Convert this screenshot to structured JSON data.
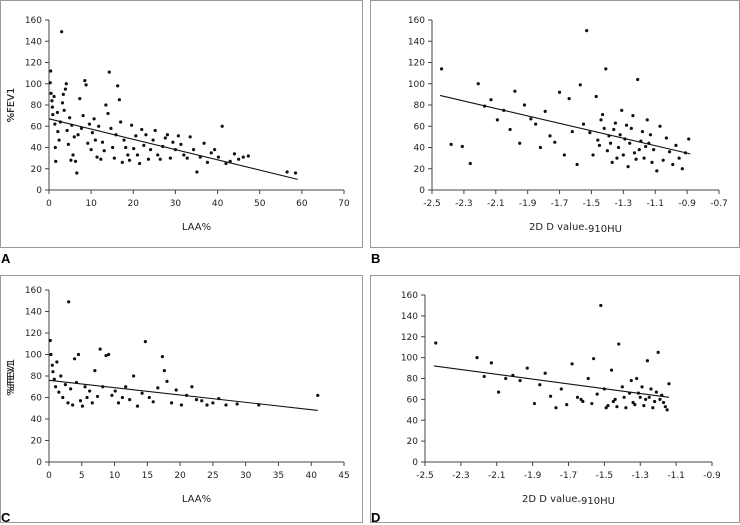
{
  "chart_data": [
    {
      "panel": "A",
      "type": "scatter",
      "xlabel": "LAA%",
      "ylabel": "%FEV1",
      "xlim": [
        0,
        70
      ],
      "ylim": [
        0,
        160
      ],
      "xticks": [
        0,
        10,
        20,
        30,
        40,
        50,
        60,
        70
      ],
      "yticks": [
        0,
        20,
        40,
        60,
        80,
        100,
        120,
        140,
        160
      ],
      "trendline": {
        "x": [
          0,
          59
        ],
        "y": [
          67,
          10
        ]
      },
      "points": [
        [
          0.4,
          112
        ],
        [
          0.3,
          101
        ],
        [
          0.5,
          91
        ],
        [
          0.7,
          84
        ],
        [
          0.8,
          78
        ],
        [
          0.9,
          71
        ],
        [
          1.2,
          88
        ],
        [
          1.4,
          62
        ],
        [
          1.5,
          40
        ],
        [
          1.6,
          27
        ],
        [
          2.0,
          73
        ],
        [
          2.1,
          55
        ],
        [
          2.4,
          47
        ],
        [
          2.7,
          64
        ],
        [
          3.0,
          149
        ],
        [
          3.2,
          82
        ],
        [
          3.4,
          90
        ],
        [
          3.6,
          75
        ],
        [
          3.9,
          95
        ],
        [
          4.1,
          100
        ],
        [
          4.3,
          56
        ],
        [
          4.6,
          43
        ],
        [
          4.9,
          68
        ],
        [
          5.2,
          28
        ],
        [
          5.4,
          61
        ],
        [
          5.7,
          33
        ],
        [
          6.0,
          50
        ],
        [
          6.3,
          27
        ],
        [
          6.6,
          16
        ],
        [
          6.9,
          52
        ],
        [
          7.3,
          86
        ],
        [
          7.7,
          58
        ],
        [
          8.1,
          70
        ],
        [
          8.5,
          103
        ],
        [
          8.8,
          99
        ],
        [
          9.2,
          44
        ],
        [
          9.6,
          62
        ],
        [
          10.0,
          38
        ],
        [
          10.3,
          54
        ],
        [
          10.7,
          67
        ],
        [
          11.0,
          47
        ],
        [
          11.4,
          31
        ],
        [
          11.8,
          60
        ],
        [
          12.3,
          29
        ],
        [
          12.7,
          45
        ],
        [
          13.1,
          37
        ],
        [
          13.5,
          80
        ],
        [
          14.0,
          72
        ],
        [
          14.3,
          111
        ],
        [
          14.7,
          58
        ],
        [
          15.1,
          40
        ],
        [
          15.5,
          30
        ],
        [
          15.9,
          52
        ],
        [
          16.3,
          98
        ],
        [
          16.7,
          85
        ],
        [
          17.0,
          64
        ],
        [
          17.4,
          26
        ],
        [
          17.8,
          47
        ],
        [
          18.2,
          40
        ],
        [
          18.7,
          33
        ],
        [
          19.1,
          28
        ],
        [
          19.6,
          61
        ],
        [
          20.1,
          39
        ],
        [
          20.6,
          51
        ],
        [
          21.0,
          33
        ],
        [
          21.5,
          25
        ],
        [
          22.0,
          57
        ],
        [
          22.5,
          42
        ],
        [
          23.0,
          52
        ],
        [
          23.6,
          29
        ],
        [
          24.1,
          38
        ],
        [
          24.7,
          47
        ],
        [
          25.2,
          56
        ],
        [
          25.8,
          33
        ],
        [
          26.4,
          29
        ],
        [
          27.0,
          41
        ],
        [
          27.6,
          49
        ],
        [
          28.1,
          52
        ],
        [
          28.8,
          30
        ],
        [
          29.4,
          45
        ],
        [
          30.0,
          38
        ],
        [
          30.7,
          51
        ],
        [
          31.3,
          43
        ],
        [
          32.0,
          33
        ],
        [
          32.8,
          30
        ],
        [
          33.5,
          50
        ],
        [
          34.3,
          38
        ],
        [
          35.1,
          17
        ],
        [
          35.9,
          31
        ],
        [
          36.8,
          44
        ],
        [
          37.6,
          26
        ],
        [
          38.5,
          35
        ],
        [
          39.3,
          38
        ],
        [
          40.2,
          31
        ],
        [
          41.1,
          60
        ],
        [
          42.0,
          25
        ],
        [
          43.0,
          27
        ],
        [
          44.0,
          34
        ],
        [
          45.0,
          29
        ],
        [
          46.1,
          31
        ],
        [
          47.3,
          32
        ],
        [
          56.5,
          17
        ],
        [
          58.5,
          16
        ]
      ]
    },
    {
      "panel": "B",
      "type": "scatter",
      "xlabel": "2D D value",
      "xlabel_sub": "-910HU",
      "ylabel": "%FEV1",
      "xlim": [
        -2.5,
        -0.7
      ],
      "ylim": [
        0,
        160
      ],
      "xticks": [
        -2.5,
        -2.3,
        -2.1,
        -1.9,
        -1.7,
        -1.5,
        -1.3,
        -1.1,
        -0.9,
        -0.7
      ],
      "yticks": [
        0,
        20,
        40,
        60,
        80,
        100,
        120,
        140,
        160
      ],
      "trendline": {
        "x": [
          -2.45,
          -0.88
        ],
        "y": [
          89,
          34
        ]
      },
      "points": [
        [
          -2.44,
          114
        ],
        [
          -2.38,
          43
        ],
        [
          -2.31,
          41
        ],
        [
          -2.26,
          25
        ],
        [
          -2.21,
          100
        ],
        [
          -2.17,
          79
        ],
        [
          -2.13,
          85
        ],
        [
          -2.09,
          66
        ],
        [
          -2.05,
          75
        ],
        [
          -2.01,
          57
        ],
        [
          -1.98,
          93
        ],
        [
          -1.95,
          44
        ],
        [
          -1.92,
          80
        ],
        [
          -1.88,
          67
        ],
        [
          -1.85,
          62
        ],
        [
          -1.82,
          40
        ],
        [
          -1.79,
          74
        ],
        [
          -1.76,
          51
        ],
        [
          -1.73,
          45
        ],
        [
          -1.7,
          92
        ],
        [
          -1.67,
          33
        ],
        [
          -1.64,
          86
        ],
        [
          -1.62,
          55
        ],
        [
          -1.59,
          24
        ],
        [
          -1.57,
          99
        ],
        [
          -1.55,
          62
        ],
        [
          -1.53,
          150
        ],
        [
          -1.51,
          54
        ],
        [
          -1.49,
          33
        ],
        [
          -1.47,
          88
        ],
        [
          -1.45,
          42
        ],
        [
          -1.43,
          71
        ],
        [
          -1.41,
          114
        ],
        [
          -1.39,
          51
        ],
        [
          -1.37,
          26
        ],
        [
          -1.35,
          63
        ],
        [
          -1.33,
          40
        ],
        [
          -1.31,
          75
        ],
        [
          -1.29,
          48
        ],
        [
          -1.27,
          22
        ],
        [
          -1.25,
          58
        ],
        [
          -1.23,
          35
        ],
        [
          -1.21,
          104
        ],
        [
          -1.19,
          46
        ],
        [
          -1.17,
          30
        ],
        [
          -1.15,
          66
        ],
        [
          -1.13,
          52
        ],
        [
          -1.11,
          38
        ],
        [
          -1.09,
          18
        ],
        [
          -1.07,
          60
        ],
        [
          -1.05,
          28
        ],
        [
          -1.03,
          49
        ],
        [
          -1.01,
          36
        ],
        [
          -0.99,
          24
        ],
        [
          -0.97,
          42
        ],
        [
          -0.95,
          30
        ],
        [
          -0.93,
          20
        ],
        [
          -0.91,
          35
        ],
        [
          -0.89,
          48
        ],
        [
          -1.44,
          66
        ],
        [
          -1.36,
          57
        ],
        [
          -1.26,
          44
        ],
        [
          -1.22,
          29
        ],
        [
          -1.32,
          52
        ],
        [
          -1.4,
          37
        ],
        [
          -1.16,
          41
        ],
        [
          -1.28,
          61
        ],
        [
          -1.18,
          55
        ],
        [
          -1.46,
          47
        ],
        [
          -1.34,
          30
        ],
        [
          -1.24,
          70
        ],
        [
          -1.2,
          38
        ],
        [
          -1.14,
          44
        ],
        [
          -1.12,
          26
        ],
        [
          -1.3,
          33
        ],
        [
          -1.42,
          58
        ],
        [
          -1.38,
          44
        ]
      ]
    },
    {
      "panel": "C",
      "type": "scatter",
      "xlabel": "LAA%",
      "ylabel": "%FEV1",
      "xlim": [
        0,
        45
      ],
      "ylim": [
        0,
        160
      ],
      "xticks": [
        0,
        5,
        10,
        15,
        20,
        25,
        30,
        35,
        40,
        45
      ],
      "yticks": [
        0,
        20,
        40,
        60,
        80,
        100,
        120,
        140,
        160
      ],
      "trendline": {
        "x": [
          0,
          41
        ],
        "y": [
          76,
          48
        ]
      },
      "points": [
        [
          0.2,
          113
        ],
        [
          0.3,
          100
        ],
        [
          0.5,
          90
        ],
        [
          0.6,
          84
        ],
        [
          0.8,
          77
        ],
        [
          1.0,
          70
        ],
        [
          1.2,
          93
        ],
        [
          1.5,
          65
        ],
        [
          1.8,
          80
        ],
        [
          2.1,
          60
        ],
        [
          2.5,
          72
        ],
        [
          2.9,
          55
        ],
        [
          3.0,
          149
        ],
        [
          3.3,
          68
        ],
        [
          3.6,
          53
        ],
        [
          3.9,
          96
        ],
        [
          4.2,
          74
        ],
        [
          4.5,
          100
        ],
        [
          4.8,
          57
        ],
        [
          5.1,
          52
        ],
        [
          5.5,
          70
        ],
        [
          5.8,
          60
        ],
        [
          6.2,
          66
        ],
        [
          6.6,
          55
        ],
        [
          7.0,
          85
        ],
        [
          7.4,
          61
        ],
        [
          7.8,
          105
        ],
        [
          8.2,
          70
        ],
        [
          8.7,
          99
        ],
        [
          9.1,
          100
        ],
        [
          9.6,
          62
        ],
        [
          10.1,
          66
        ],
        [
          10.6,
          55
        ],
        [
          11.2,
          60
        ],
        [
          11.7,
          70
        ],
        [
          12.3,
          58
        ],
        [
          12.9,
          80
        ],
        [
          13.5,
          52
        ],
        [
          14.2,
          64
        ],
        [
          14.7,
          112
        ],
        [
          15.3,
          60
        ],
        [
          15.9,
          56
        ],
        [
          16.6,
          69
        ],
        [
          17.3,
          98
        ],
        [
          17.6,
          85
        ],
        [
          18.0,
          75
        ],
        [
          18.7,
          55
        ],
        [
          19.4,
          67
        ],
        [
          20.2,
          53
        ],
        [
          21.0,
          62
        ],
        [
          21.8,
          70
        ],
        [
          22.5,
          58
        ],
        [
          23.3,
          57
        ],
        [
          24.1,
          53
        ],
        [
          25.0,
          55
        ],
        [
          25.9,
          59
        ],
        [
          27.0,
          53
        ],
        [
          28.7,
          54
        ],
        [
          32.0,
          53
        ],
        [
          41.0,
          62
        ]
      ]
    },
    {
      "panel": "D",
      "type": "scatter",
      "xlabel": "2D D value",
      "xlabel_sub": "-910HU",
      "ylabel": "%FEV1",
      "xlim": [
        -2.5,
        -0.9
      ],
      "ylim": [
        0,
        160
      ],
      "xticks": [
        -2.5,
        -2.3,
        -2.1,
        -1.9,
        -1.7,
        -1.5,
        -1.3,
        -1.1,
        -0.9
      ],
      "yticks": [
        0,
        20,
        40,
        60,
        80,
        100,
        120,
        140,
        160
      ],
      "trendline": {
        "x": [
          -2.45,
          -1.14
        ],
        "y": [
          92,
          62
        ]
      },
      "points": [
        [
          -2.44,
          114
        ],
        [
          -2.21,
          100
        ],
        [
          -2.17,
          82
        ],
        [
          -2.13,
          95
        ],
        [
          -2.09,
          67
        ],
        [
          -2.05,
          80
        ],
        [
          -2.01,
          83
        ],
        [
          -1.97,
          78
        ],
        [
          -1.93,
          90
        ],
        [
          -1.89,
          56
        ],
        [
          -1.86,
          74
        ],
        [
          -1.83,
          85
        ],
        [
          -1.8,
          63
        ],
        [
          -1.77,
          52
        ],
        [
          -1.74,
          70
        ],
        [
          -1.71,
          55
        ],
        [
          -1.68,
          94
        ],
        [
          -1.65,
          62
        ],
        [
          -1.62,
          58
        ],
        [
          -1.59,
          80
        ],
        [
          -1.56,
          99
        ],
        [
          -1.54,
          65
        ],
        [
          -1.52,
          150
        ],
        [
          -1.5,
          70
        ],
        [
          -1.48,
          54
        ],
        [
          -1.46,
          88
        ],
        [
          -1.44,
          60
        ],
        [
          -1.42,
          113
        ],
        [
          -1.4,
          72
        ],
        [
          -1.38,
          52
        ],
        [
          -1.36,
          66
        ],
        [
          -1.34,
          57
        ],
        [
          -1.32,
          80
        ],
        [
          -1.3,
          62
        ],
        [
          -1.28,
          54
        ],
        [
          -1.26,
          97
        ],
        [
          -1.24,
          70
        ],
        [
          -1.22,
          58
        ],
        [
          -1.2,
          105
        ],
        [
          -1.18,
          64
        ],
        [
          -1.16,
          53
        ],
        [
          -1.14,
          75
        ],
        [
          -1.15,
          50
        ],
        [
          -1.21,
          67
        ],
        [
          -1.27,
          60
        ],
        [
          -1.33,
          55
        ],
        [
          -1.39,
          62
        ],
        [
          -1.45,
          58
        ],
        [
          -1.49,
          52
        ],
        [
          -1.57,
          56
        ],
        [
          -1.63,
          60
        ],
        [
          -1.29,
          72
        ],
        [
          -1.19,
          60
        ],
        [
          -1.23,
          52
        ],
        [
          -1.35,
          78
        ],
        [
          -1.43,
          53
        ],
        [
          -1.17,
          57
        ],
        [
          -1.31,
          66
        ],
        [
          -1.25,
          62
        ]
      ]
    }
  ],
  "panels": {
    "a": {
      "letter": "A"
    },
    "b": {
      "letter": "B"
    },
    "c": {
      "letter": "C"
    },
    "d": {
      "letter": "D"
    }
  }
}
